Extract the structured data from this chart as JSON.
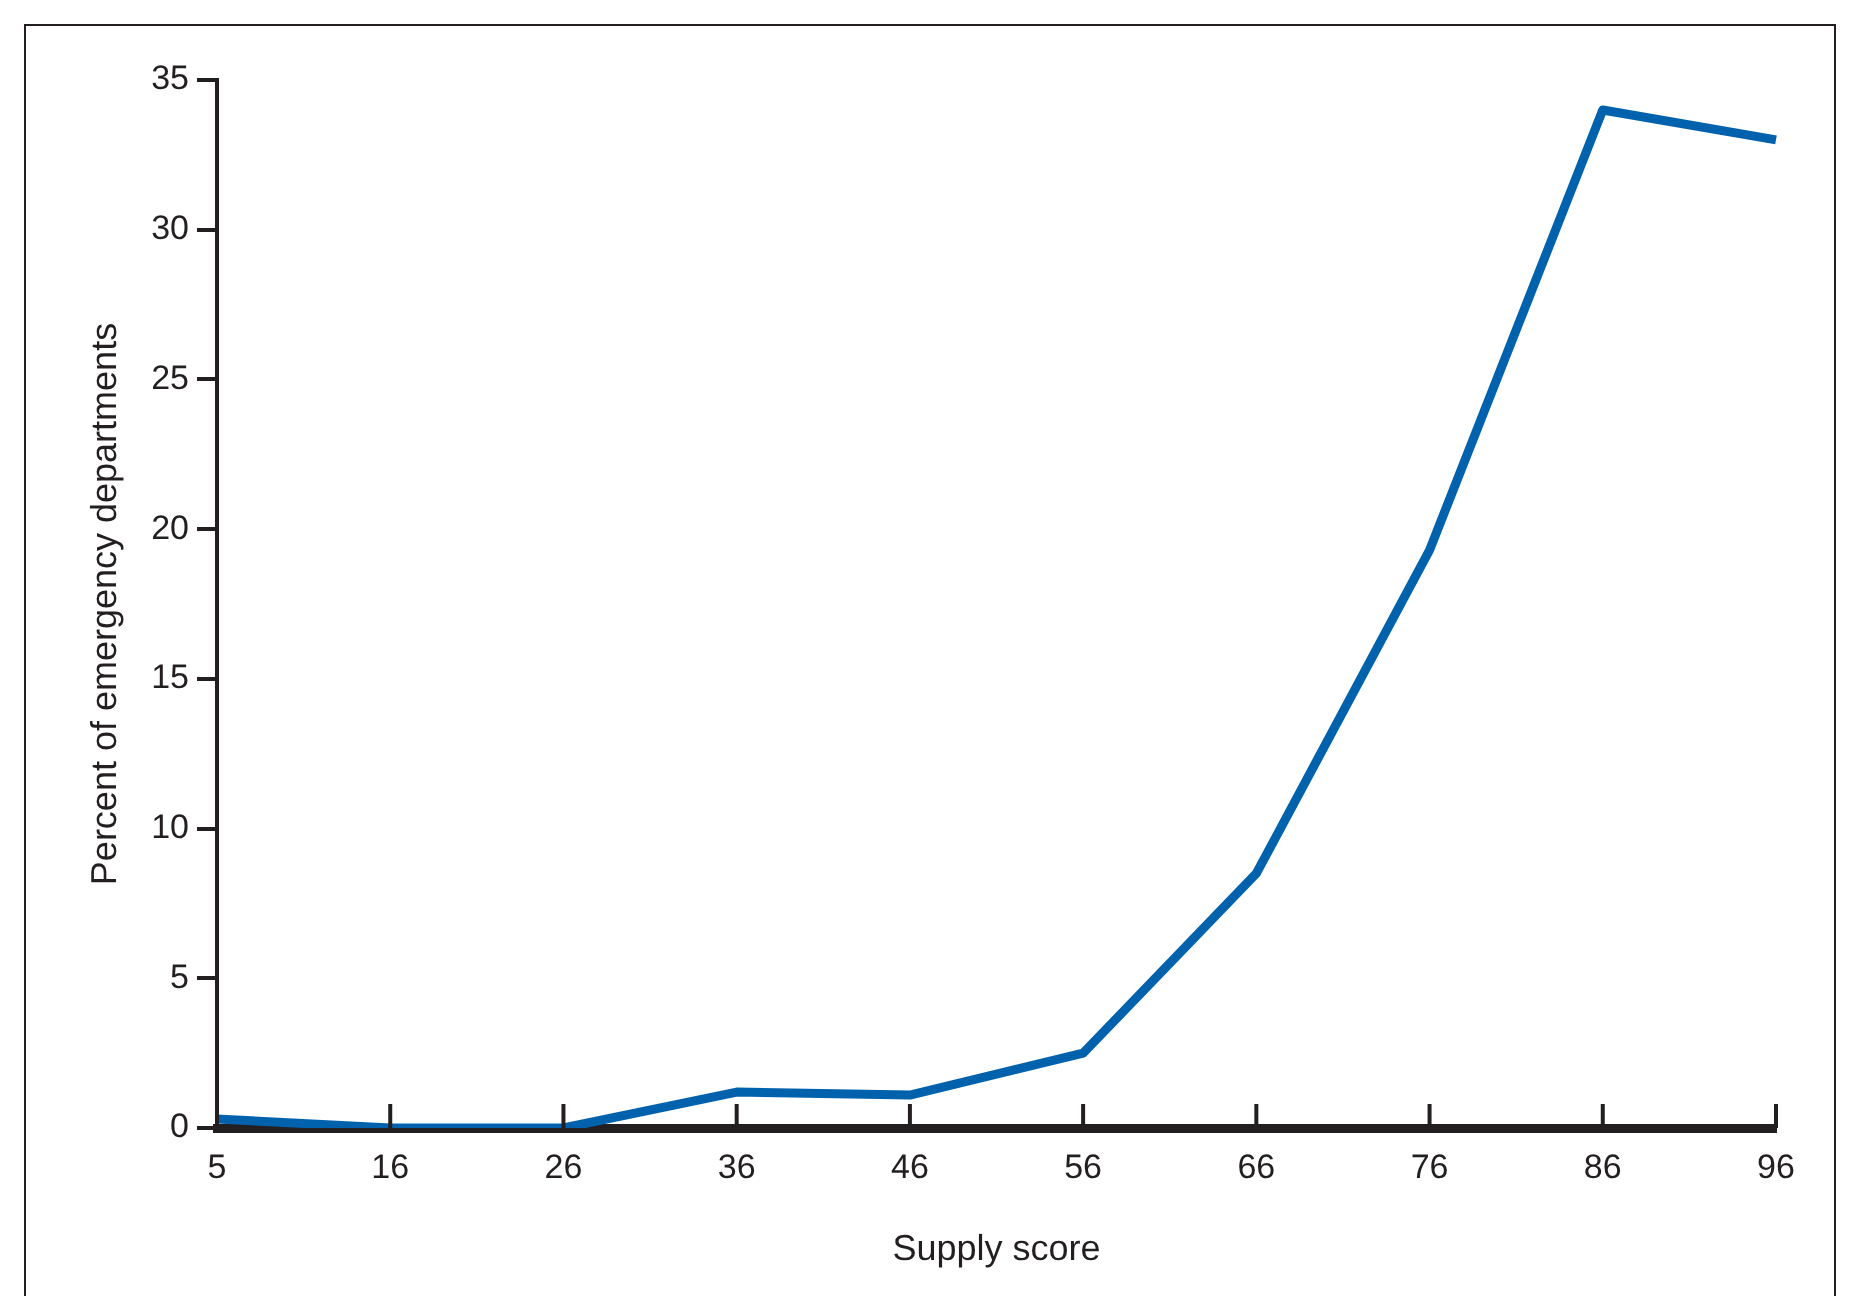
{
  "chart_data": {
    "type": "line",
    "xlabel": "Supply score",
    "ylabel": "Percent of emergency departments",
    "categories": [
      "5",
      "16",
      "26",
      "36",
      "46",
      "56",
      "66",
      "76",
      "86",
      "96"
    ],
    "series": [
      {
        "color": "#0062ad",
        "values": [
          0.3,
          0,
          0,
          1.2,
          1.1,
          2.5,
          8.5,
          19.3,
          34.0,
          33.0
        ]
      }
    ],
    "ylim": [
      0,
      35
    ],
    "yticks": [
      0,
      5,
      10,
      15,
      20,
      25,
      30,
      35
    ],
    "grid": false,
    "legend": false,
    "marker": "none",
    "line_style": "solid"
  }
}
